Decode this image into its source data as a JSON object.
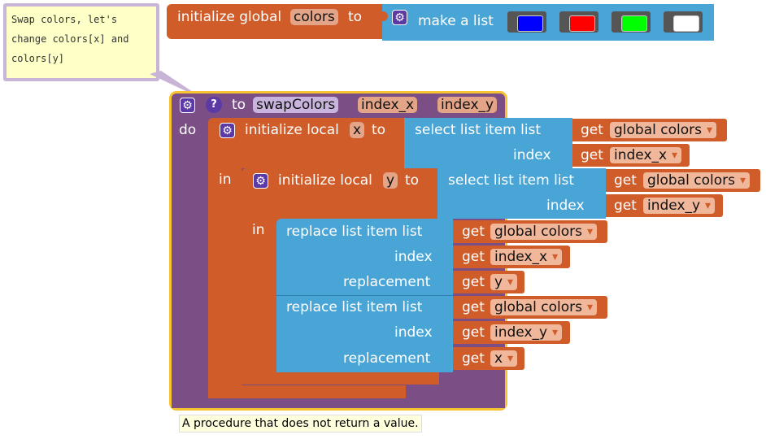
{
  "comment": {
    "text": "Swap colors, let's\nchange colors[x] and\ncolors[y]"
  },
  "global_init": {
    "keyword": "initialize global",
    "var_name": "colors",
    "to": "to",
    "make_list": "make a list",
    "swatch_colors": [
      "#0000ff",
      "#ff0000",
      "#00ff00",
      "#ffffff"
    ]
  },
  "procedure": {
    "to": "to",
    "name": "swapColors",
    "params": [
      "index_x",
      "index_y"
    ],
    "do": "do",
    "help": "?"
  },
  "local_x": {
    "keyword": "initialize local",
    "var_name": "x",
    "to": "to",
    "in": "in",
    "select": "select list item  list",
    "index": "index",
    "list_get": {
      "get": "get",
      "var": "global colors"
    },
    "index_get": {
      "get": "get",
      "var": "index_x"
    }
  },
  "local_y": {
    "keyword": "initialize local",
    "var_name": "y",
    "to": "to",
    "in": "in",
    "select": "select list item  list",
    "index": "index",
    "list_get": {
      "get": "get",
      "var": "global colors"
    },
    "index_get": {
      "get": "get",
      "var": "index_y"
    }
  },
  "replace1": {
    "label": "replace list item  list",
    "index": "index",
    "replacement": "replacement",
    "list_get": {
      "get": "get",
      "var": "global colors"
    },
    "index_get": {
      "get": "get",
      "var": "index_x"
    },
    "repl_get": {
      "get": "get",
      "var": "y"
    }
  },
  "replace2": {
    "label": "replace list item  list",
    "index": "index",
    "replacement": "replacement",
    "list_get": {
      "get": "get",
      "var": "global colors"
    },
    "index_get": {
      "get": "get",
      "var": "index_y"
    },
    "repl_get": {
      "get": "get",
      "var": "x"
    }
  },
  "tooltip": {
    "text": "A procedure that does not return a value."
  },
  "icons": {
    "gear": "⚙",
    "help": "?"
  }
}
